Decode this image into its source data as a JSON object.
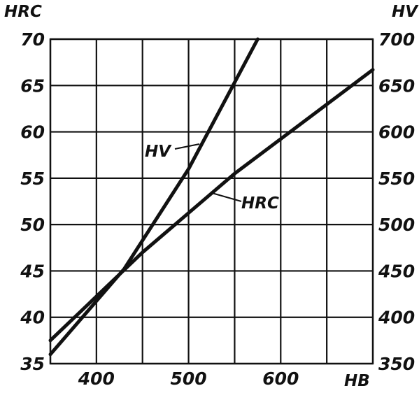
{
  "chart_data": {
    "type": "line",
    "left_axis_title": "HRC",
    "right_axis_title": "HV",
    "x_axis_title": "HB",
    "x_ticks": [
      400,
      500,
      600
    ],
    "x_grid": [
      350,
      400,
      450,
      500,
      550,
      600,
      650,
      700
    ],
    "xlim": [
      350,
      700
    ],
    "left_ylim": [
      35,
      70
    ],
    "left_ticks": [
      35,
      40,
      45,
      50,
      55,
      60,
      65,
      70
    ],
    "right_ylim": [
      350,
      700
    ],
    "right_ticks": [
      350,
      400,
      450,
      500,
      550,
      600,
      650,
      700
    ],
    "grid": true,
    "series": [
      {
        "name": "HV",
        "axis": "right",
        "x": [
          350,
          430,
          500,
          575
        ],
        "y": [
          360,
          452,
          560,
          700
        ]
      },
      {
        "name": "HRC",
        "axis": "left",
        "x": [
          350,
          450,
          550,
          700
        ],
        "y": [
          37.5,
          47,
          55.5,
          66.7
        ]
      }
    ]
  }
}
